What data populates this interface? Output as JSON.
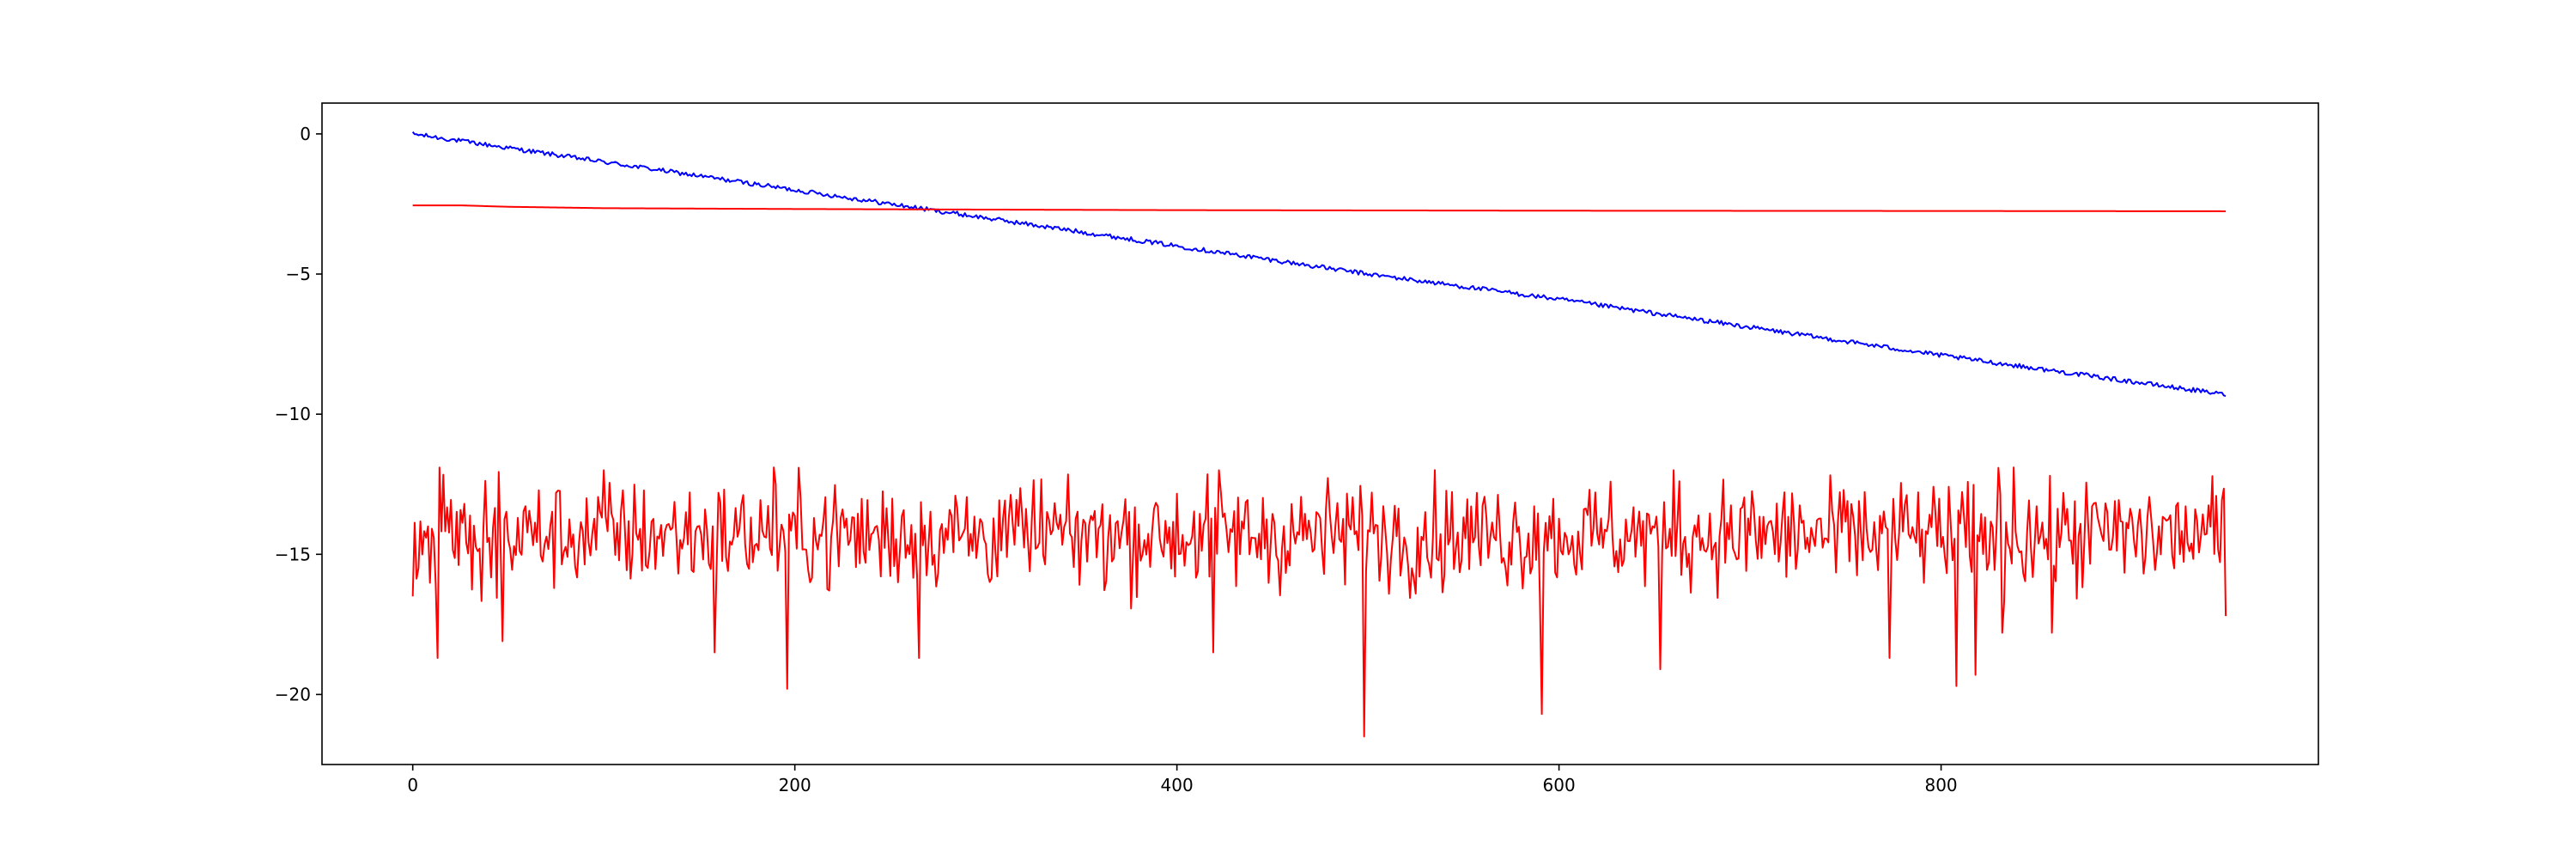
{
  "chart_data": {
    "type": "line",
    "title": "",
    "xlabel": "",
    "ylabel": "",
    "xlim": [
      -47.5,
      997.5
    ],
    "ylim": [
      -22.5,
      1.1
    ],
    "xticks": [
      0,
      200,
      400,
      600,
      800
    ],
    "yticks": [
      0,
      -5,
      -10,
      -15,
      -20
    ],
    "xtick_labels": [
      "0",
      "200",
      "400",
      "600",
      "800"
    ],
    "ytick_labels": [
      "0",
      "−5",
      "−10",
      "−15",
      "−20"
    ],
    "grid": false,
    "legend": "none",
    "n_points": 950,
    "series": [
      {
        "color": "#0000ff",
        "description": "noisy linear decline",
        "start": 0.0,
        "end": -9.3,
        "noise_amplitude": 0.08,
        "x": [
          0,
          100,
          200,
          300,
          400,
          500,
          600,
          700,
          800,
          949
        ],
        "y": [
          0.0,
          -1.0,
          -2.0,
          -3.0,
          -4.0,
          -5.0,
          -5.9,
          -6.9,
          -7.9,
          -9.3
        ]
      },
      {
        "color": "#ff0000",
        "description": "nearly flat line",
        "x": [
          0,
          25,
          50,
          100,
          200,
          300,
          400,
          600,
          800,
          949
        ],
        "y": [
          -2.55,
          -2.55,
          -2.6,
          -2.65,
          -2.68,
          -2.7,
          -2.72,
          -2.74,
          -2.75,
          -2.76
        ]
      },
      {
        "color": "#ff0000",
        "description": "noisy signal around -14.3",
        "mean": -14.3,
        "range": [
          -21.5,
          -11.9
        ],
        "spikes": [
          {
            "x": 0,
            "y": -16.5
          },
          {
            "x": 13,
            "y": -18.7
          },
          {
            "x": 47,
            "y": -18.1
          },
          {
            "x": 158,
            "y": -18.5
          },
          {
            "x": 196,
            "y": -19.8
          },
          {
            "x": 265,
            "y": -18.7
          },
          {
            "x": 419,
            "y": -18.5
          },
          {
            "x": 498,
            "y": -21.5
          },
          {
            "x": 591,
            "y": -20.7
          },
          {
            "x": 653,
            "y": -19.1
          },
          {
            "x": 773,
            "y": -18.7
          },
          {
            "x": 808,
            "y": -19.7
          },
          {
            "x": 818,
            "y": -19.3
          },
          {
            "x": 832,
            "y": -17.8
          },
          {
            "x": 858,
            "y": -17.8
          },
          {
            "x": 949,
            "y": -17.2
          }
        ],
        "peaks": [
          {
            "x": 100,
            "y": -12.0
          },
          {
            "x": 189,
            "y": -11.9
          },
          {
            "x": 422,
            "y": -12.0
          },
          {
            "x": 660,
            "y": -12.0
          },
          {
            "x": 838,
            "y": -11.9
          }
        ]
      }
    ]
  }
}
